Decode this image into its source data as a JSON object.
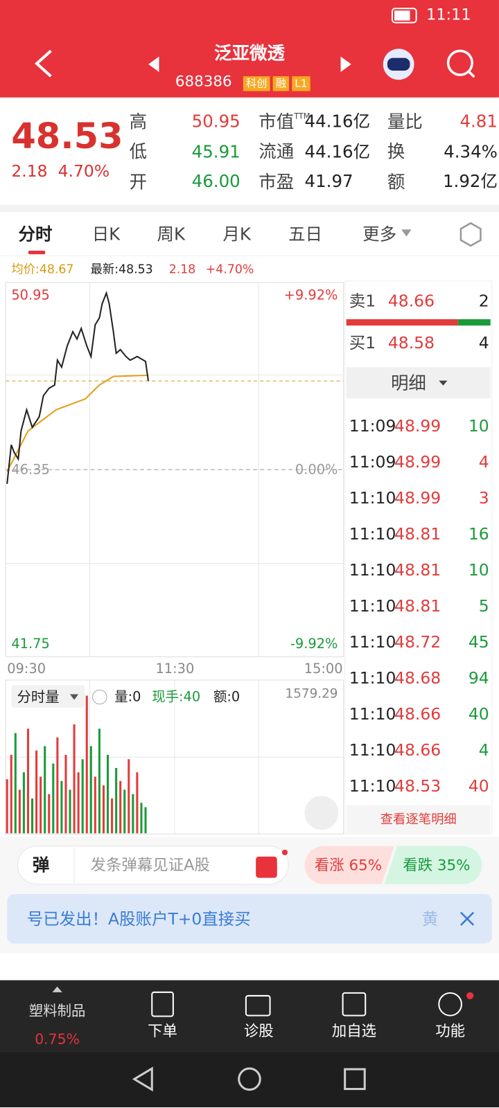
{
  "status_bar": {
    "time": "11:11"
  },
  "header": {
    "title": "泛亚微透",
    "code": "688386",
    "tags": [
      "科创",
      "融",
      "L1"
    ]
  },
  "quote": {
    "price": "48.53",
    "change": "2.18",
    "change_pct": "4.70%",
    "col1": [
      [
        "高",
        "50.95"
      ],
      [
        "低",
        "45.91"
      ],
      [
        "开",
        "46.00"
      ]
    ],
    "col2": [
      [
        "市值",
        "44.16亿"
      ],
      [
        "流通",
        "44.16亿"
      ],
      [
        "市盈",
        "41.97"
      ]
    ],
    "col2_sup": "TTM",
    "col3": [
      [
        "量比",
        "4.81"
      ],
      [
        "换",
        "4.34%"
      ],
      [
        "额",
        "1.92亿"
      ]
    ]
  },
  "tabs": [
    "分时",
    "日K",
    "周K",
    "月K",
    "五日",
    "更多"
  ],
  "legend": {
    "avg": "均价:48.67",
    "latest": "最新:48.53",
    "change": "2.18",
    "pct": "+4.70%"
  },
  "intraday": {
    "xlim": [
      0,
      240
    ],
    "xticks": [
      {
        "value": 0,
        "label": "09:30"
      },
      {
        "value": 120,
        "label": "11:30"
      },
      {
        "value": 240,
        "label": "15:00"
      }
    ],
    "ylim": [
      41.75,
      50.95
    ],
    "yticks": [
      50.95,
      46.35,
      41.75
    ],
    "pct_labels": [
      "+9.92%",
      "0.00%",
      "-9.92%"
    ],
    "price_color": "#222222",
    "avg_color": "#e0a21a",
    "minutes": [
      0,
      3,
      5,
      8,
      10,
      14,
      18,
      23,
      26,
      30,
      34,
      36,
      39,
      43,
      47,
      50,
      53,
      57,
      60,
      63,
      66,
      68,
      71,
      73,
      76,
      78,
      81,
      85,
      88,
      93,
      99,
      101
    ],
    "price": [
      46.0,
      46.96,
      46.78,
      46.61,
      47.3,
      47.82,
      47.39,
      47.65,
      48.17,
      48.35,
      48.43,
      49.04,
      48.87,
      49.39,
      49.74,
      49.56,
      49.82,
      49.39,
      49.13,
      49.91,
      50.08,
      50.43,
      50.69,
      50.43,
      49.74,
      49.21,
      49.3,
      49.13,
      49.04,
      49.13,
      49.01,
      48.53
    ],
    "avg_minutes": [
      0,
      15,
      35,
      56,
      66,
      76,
      101
    ],
    "avg": [
      46.3,
      47.3,
      47.82,
      48.09,
      48.43,
      48.64,
      48.67
    ]
  },
  "volume": {
    "label": "分时量",
    "stats": [
      "量:0",
      "现手:40",
      "额:0"
    ],
    "max": 1579.29,
    "ylim": [
      0,
      1579.29
    ],
    "minutes": [
      0,
      3,
      6,
      9,
      12,
      15,
      18,
      21,
      24,
      27,
      30,
      33,
      36,
      39,
      42,
      45,
      48,
      51,
      54,
      57,
      60,
      63,
      66,
      69,
      72,
      75,
      78,
      81,
      84,
      87,
      90,
      93,
      96,
      99
    ],
    "values": [
      620,
      900,
      1150,
      500,
      700,
      1200,
      400,
      950,
      650,
      1000,
      450,
      800,
      1100,
      600,
      900,
      500,
      1250,
      700,
      850,
      1579,
      1000,
      650,
      1200,
      550,
      900,
      400,
      750,
      600,
      500,
      850,
      450,
      700,
      350,
      300
    ],
    "colors": [
      "#e23b3b",
      "#e23b3b",
      "#1a9b3a",
      "#e23b3b",
      "#1a9b3a",
      "#e23b3b",
      "#1a9b3a",
      "#e23b3b",
      "#e23b3b",
      "#1a9b3a",
      "#e23b3b",
      "#1a9b3a",
      "#e23b3b",
      "#1a9b3a",
      "#e23b3b",
      "#1a9b3a",
      "#e23b3b",
      "#e23b3b",
      "#1a9b3a",
      "#e23b3b",
      "#1a9b3a",
      "#e23b3b",
      "#1a9b3a",
      "#e23b3b",
      "#1a9b3a",
      "#e23b3b",
      "#1a9b3a",
      "#e23b3b",
      "#1a9b3a",
      "#e23b3b",
      "#1a9b3a",
      "#e23b3b",
      "#1a9b3a",
      "#1a9b3a"
    ]
  },
  "order_book": {
    "ask": [
      "卖1",
      "48.66",
      "2"
    ],
    "bid": [
      "买1",
      "48.58",
      "4"
    ],
    "detail_title": "明细",
    "trades": [
      [
        "11:09",
        "48.99",
        "10"
      ],
      [
        "11:09",
        "48.99",
        "4"
      ],
      [
        "11:10",
        "48.99",
        "3"
      ],
      [
        "11:10",
        "48.81",
        "16"
      ],
      [
        "11:10",
        "48.81",
        "10"
      ],
      [
        "11:10",
        "48.81",
        "5"
      ],
      [
        "11:10",
        "48.72",
        "45"
      ],
      [
        "11:10",
        "48.68",
        "94"
      ],
      [
        "11:10",
        "48.66",
        "40"
      ],
      [
        "11:10",
        "48.66",
        "4"
      ],
      [
        "11:10",
        "48.53",
        "40"
      ]
    ],
    "trade_colors": [
      "#1a9b3a",
      "#e23b3b",
      "#e23b3b",
      "#1a9b3a",
      "#1a9b3a",
      "#1a9b3a",
      "#1a9b3a",
      "#1a9b3a",
      "#1a9b3a",
      "#1a9b3a",
      "#e23b3b"
    ],
    "more": "查看逐笔明细"
  },
  "danmu": {
    "icon": "弹",
    "placeholder": "发条弹幕见证A股"
  },
  "vote": {
    "up": "看涨 65%",
    "down": "看跌 35%"
  },
  "banner": {
    "text": "号已发出！A股账户T+0直接买",
    "tail": "黄"
  },
  "bottom_nav": {
    "sector": "塑料制品",
    "sector_pct": "0.75%",
    "items": [
      "下单",
      "诊股",
      "加自选",
      "功能"
    ]
  }
}
